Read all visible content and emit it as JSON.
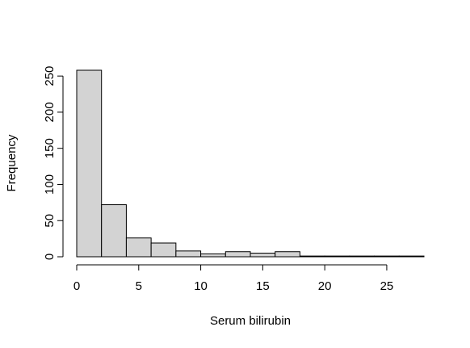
{
  "chart_data": {
    "type": "bar",
    "title": "",
    "xlabel": "Serum bilirubin",
    "ylabel": "Frequency",
    "bin_edges": [
      0,
      2,
      4,
      6,
      8,
      10,
      12,
      14,
      16,
      18,
      20,
      22,
      24,
      26,
      28
    ],
    "values": [
      258,
      72,
      26,
      19,
      8,
      4,
      7,
      5,
      7,
      1,
      1,
      1,
      1,
      1
    ],
    "xlim": [
      0,
      28
    ],
    "ylim": [
      0,
      258
    ],
    "x_ticks": [
      0,
      5,
      10,
      15,
      20,
      25
    ],
    "x_tick_labels": [
      "0",
      "5",
      "10",
      "15",
      "20",
      "25"
    ],
    "y_ticks": [
      0,
      50,
      100,
      150,
      200,
      250
    ],
    "y_tick_labels": [
      "0",
      "50",
      "100",
      "150",
      "200",
      "250"
    ],
    "grid": false,
    "legend": "none",
    "bar_color": "#d3d3d3",
    "edge_color": "#000000"
  }
}
